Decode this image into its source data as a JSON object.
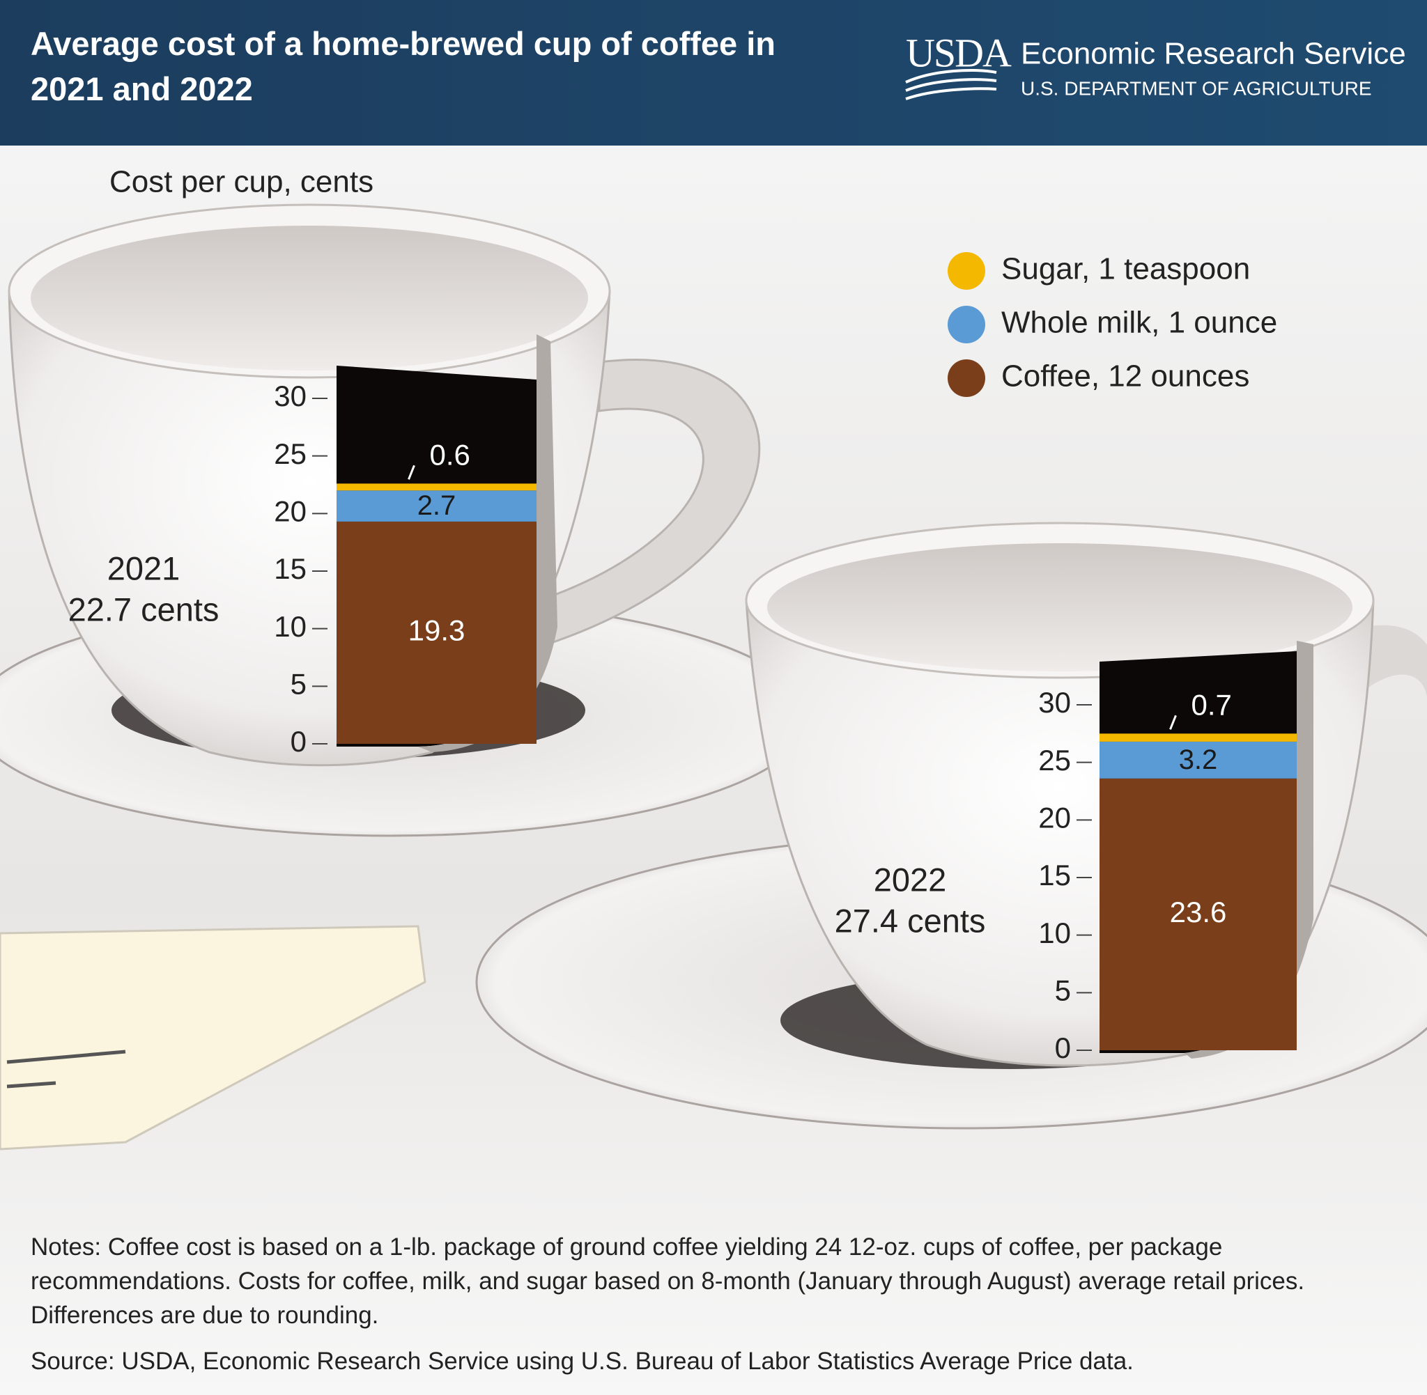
{
  "header": {
    "usda": "USDA",
    "agency": "Economic Research Service",
    "department": "U.S. DEPARTMENT OF AGRICULTURE"
  },
  "chart_data": {
    "type": "bar",
    "stacked": true,
    "title": "Average cost of a home-brewed cup of coffee in 2021 and 2022",
    "y_label": "Cost per cup, cents",
    "categories": [
      "2021",
      "2022"
    ],
    "totals": [
      22.7,
      27.4
    ],
    "total_labels": [
      "22.7 cents",
      "27.4 cents"
    ],
    "series": [
      {
        "name": "Sugar, 1 teaspoon",
        "color": "#f5b800",
        "values": [
          0.6,
          0.7
        ]
      },
      {
        "name": "Whole milk, 1 ounce",
        "color": "#5b9bd5",
        "values": [
          2.7,
          3.2
        ]
      },
      {
        "name": "Coffee, 12 ounces",
        "color": "#7a3f1a",
        "values": [
          19.3,
          23.6
        ]
      }
    ],
    "ylim": [
      0,
      30
    ],
    "yticks": [
      0,
      5,
      10,
      15,
      20,
      25,
      30
    ]
  },
  "notes": "Notes: Coffee cost is based on a 1-lb. package of ground coffee yielding 24 12-oz. cups of coffee, per package recommendations. Costs for coffee, milk, and sugar based on 8-month (January through August) average retail prices. Differences are due to rounding.",
  "source": "Source: USDA, Economic Research Service using U.S. Bureau of Labor Statistics Average Price data."
}
